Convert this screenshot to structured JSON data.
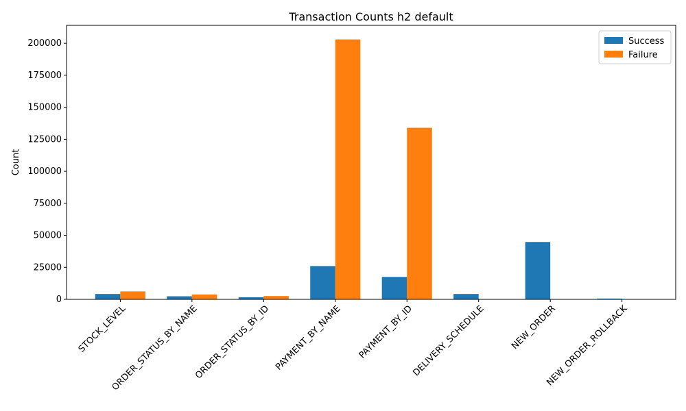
{
  "chart_data": {
    "type": "bar",
    "title": "Transaction Counts h2 default",
    "xlabel": "",
    "ylabel": "Count",
    "ylim": [
      0,
      214000
    ],
    "yticks": [
      0,
      25000,
      50000,
      75000,
      100000,
      125000,
      150000,
      175000,
      200000
    ],
    "categories": [
      "STOCK_LEVEL",
      "ORDER_STATUS_BY_NAME",
      "ORDER_STATUS_BY_ID",
      "PAYMENT_BY_NAME",
      "PAYMENT_BY_ID",
      "DELIVERY_SCHEDULE",
      "NEW_ORDER",
      "NEW_ORDER_ROLLBACK"
    ],
    "series": [
      {
        "name": "Success",
        "color": "#1f77b4",
        "values": [
          4200,
          2400,
          1600,
          26000,
          17500,
          4200,
          44800,
          600
        ]
      },
      {
        "name": "Failure",
        "color": "#ff7f0e",
        "values": [
          6200,
          3800,
          2600,
          203000,
          134000,
          0,
          0,
          0
        ]
      }
    ],
    "legend": {
      "placement": "top-right"
    },
    "grid": false
  }
}
